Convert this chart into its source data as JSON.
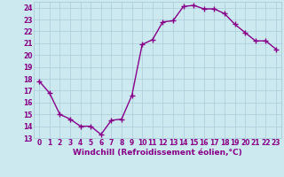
{
  "x": [
    0,
    1,
    2,
    3,
    4,
    5,
    6,
    7,
    8,
    9,
    10,
    11,
    12,
    13,
    14,
    15,
    16,
    17,
    18,
    19,
    20,
    21,
    22,
    23
  ],
  "y": [
    17.8,
    16.8,
    15.0,
    14.6,
    14.0,
    14.0,
    13.3,
    14.5,
    14.6,
    16.6,
    20.9,
    21.3,
    22.8,
    22.9,
    24.1,
    24.2,
    23.9,
    23.9,
    23.5,
    22.6,
    21.9,
    21.2,
    21.2,
    20.5
  ],
  "line_color": "#880088",
  "marker": "+",
  "markersize": 4,
  "linewidth": 1.0,
  "xlabel": "Windchill (Refroidissement éolien,°C)",
  "xlim": [
    -0.5,
    23.5
  ],
  "ylim": [
    13,
    24.5
  ],
  "yticks": [
    13,
    14,
    15,
    16,
    17,
    18,
    19,
    20,
    21,
    22,
    23,
    24
  ],
  "xticks": [
    0,
    1,
    2,
    3,
    4,
    5,
    6,
    7,
    8,
    9,
    10,
    11,
    12,
    13,
    14,
    15,
    16,
    17,
    18,
    19,
    20,
    21,
    22,
    23
  ],
  "bg_color": "#cce9f0",
  "grid_color": "#aaccd8",
  "tick_fontsize": 5.5,
  "xlabel_fontsize": 6.5
}
